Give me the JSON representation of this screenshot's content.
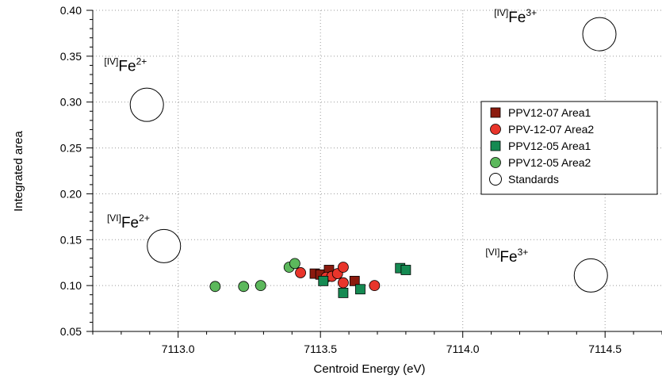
{
  "chart_data": {
    "type": "scatter",
    "xlabel": "Centroid Energy (eV)",
    "ylabel": "Integrated area",
    "xlim": [
      7112.7,
      7114.7
    ],
    "ylim": [
      0.05,
      0.4
    ],
    "x_ticks": [
      7113.0,
      7113.5,
      7114.0,
      7114.5
    ],
    "x_tick_labels": [
      "7113.0",
      "7113.5",
      "7114.0",
      "7114.5"
    ],
    "y_ticks": [
      0.05,
      0.1,
      0.15,
      0.2,
      0.25,
      0.3,
      0.35,
      0.4
    ],
    "y_tick_labels": [
      "0.05",
      "0.10",
      "0.15",
      "0.20",
      "0.25",
      "0.30",
      "0.35",
      "0.40"
    ],
    "grid": true,
    "legend_position": "right",
    "series": [
      {
        "name": "PPV12-07 Area1",
        "marker": "square",
        "color": "#8b1a0e",
        "points": [
          [
            7113.48,
            0.113
          ],
          [
            7113.5,
            0.112
          ],
          [
            7113.53,
            0.117
          ],
          [
            7113.62,
            0.105
          ]
        ]
      },
      {
        "name": "PPV-12-07 Area2",
        "marker": "circle",
        "color": "#e8352b",
        "points": [
          [
            7113.43,
            0.114
          ],
          [
            7113.52,
            0.109
          ],
          [
            7113.54,
            0.11
          ],
          [
            7113.56,
            0.113
          ],
          [
            7113.58,
            0.12
          ],
          [
            7113.58,
            0.103
          ],
          [
            7113.69,
            0.1
          ]
        ]
      },
      {
        "name": "PPV12-05 Area1",
        "marker": "square",
        "color": "#158a52",
        "points": [
          [
            7113.51,
            0.105
          ],
          [
            7113.58,
            0.092
          ],
          [
            7113.64,
            0.096
          ],
          [
            7113.78,
            0.119
          ],
          [
            7113.8,
            0.117
          ]
        ]
      },
      {
        "name": "PPV12-05 Area2",
        "marker": "circle",
        "color": "#5cb85c",
        "points": [
          [
            7113.13,
            0.099
          ],
          [
            7113.23,
            0.099
          ],
          [
            7113.29,
            0.1
          ],
          [
            7113.39,
            0.12
          ],
          [
            7113.41,
            0.124
          ]
        ]
      },
      {
        "name": "Standards",
        "marker": "open-circle",
        "color": "#000000",
        "points": [
          [
            7112.89,
            0.297
          ],
          [
            7112.95,
            0.143
          ],
          [
            7114.48,
            0.374
          ],
          [
            7114.45,
            0.111
          ]
        ]
      }
    ],
    "annotations": [
      {
        "sup": "[IV]",
        "main": "Fe",
        "charge": "2+",
        "x": 7112.74,
        "y": 0.334
      },
      {
        "sup": "[VI]",
        "main": "Fe",
        "charge": "2+",
        "x": 7112.75,
        "y": 0.163
      },
      {
        "sup": "[IV]",
        "main": "Fe",
        "charge": "3+",
        "x": 7114.11,
        "y": 0.387
      },
      {
        "sup": "[VI]",
        "main": "Fe",
        "charge": "3+",
        "x": 7114.08,
        "y": 0.126
      }
    ]
  }
}
